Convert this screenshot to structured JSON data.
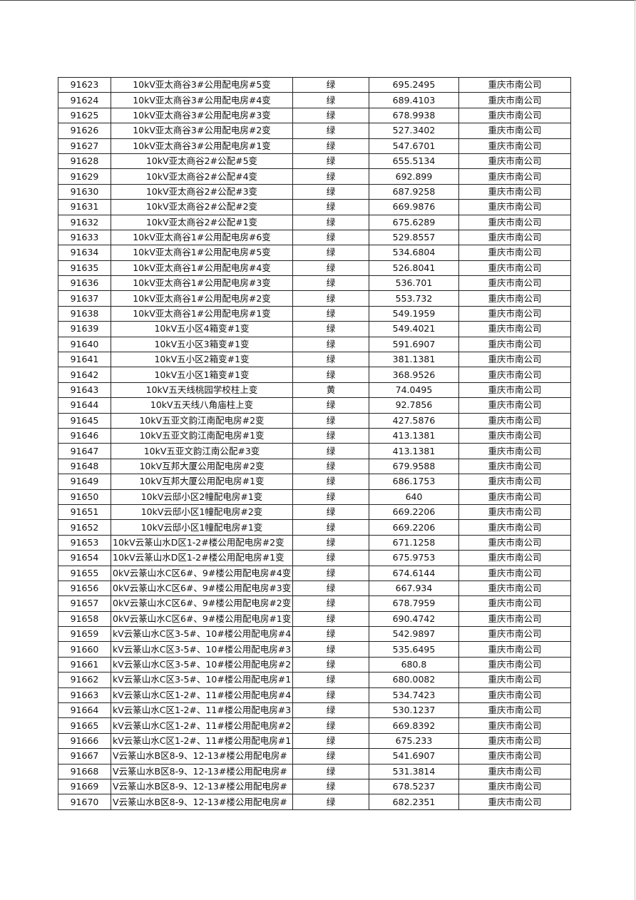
{
  "table": {
    "rows": [
      {
        "id": "91623",
        "name": "10kV亚太商谷3#公用配电房#5变",
        "status": "绿",
        "value": "695.2495",
        "company": "重庆市南公司"
      },
      {
        "id": "91624",
        "name": "10kV亚太商谷3#公用配电房#4变",
        "status": "绿",
        "value": "689.4103",
        "company": "重庆市南公司"
      },
      {
        "id": "91625",
        "name": "10kV亚太商谷3#公用配电房#3变",
        "status": "绿",
        "value": "678.9938",
        "company": "重庆市南公司"
      },
      {
        "id": "91626",
        "name": "10kV亚太商谷3#公用配电房#2变",
        "status": "绿",
        "value": "527.3402",
        "company": "重庆市南公司"
      },
      {
        "id": "91627",
        "name": "10kV亚太商谷3#公用配电房#1变",
        "status": "绿",
        "value": "547.6701",
        "company": "重庆市南公司"
      },
      {
        "id": "91628",
        "name": "10kV亚太商谷2#公配#5变",
        "status": "绿",
        "value": "655.5134",
        "company": "重庆市南公司"
      },
      {
        "id": "91629",
        "name": "10kV亚太商谷2#公配#4变",
        "status": "绿",
        "value": "692.899",
        "company": "重庆市南公司"
      },
      {
        "id": "91630",
        "name": "10kV亚太商谷2#公配#3变",
        "status": "绿",
        "value": "687.9258",
        "company": "重庆市南公司"
      },
      {
        "id": "91631",
        "name": "10kV亚太商谷2#公配#2变",
        "status": "绿",
        "value": "669.9876",
        "company": "重庆市南公司"
      },
      {
        "id": "91632",
        "name": "10kV亚太商谷2#公配#1变",
        "status": "绿",
        "value": "675.6289",
        "company": "重庆市南公司"
      },
      {
        "id": "91633",
        "name": "10kV亚太商谷1#公用配电房#6变",
        "status": "绿",
        "value": "529.8557",
        "company": "重庆市南公司"
      },
      {
        "id": "91634",
        "name": "10kV亚太商谷1#公用配电房#5变",
        "status": "绿",
        "value": "534.6804",
        "company": "重庆市南公司"
      },
      {
        "id": "91635",
        "name": "10kV亚太商谷1#公用配电房#4变",
        "status": "绿",
        "value": "526.8041",
        "company": "重庆市南公司"
      },
      {
        "id": "91636",
        "name": "10kV亚太商谷1#公用配电房#3变",
        "status": "绿",
        "value": "536.701",
        "company": "重庆市南公司"
      },
      {
        "id": "91637",
        "name": "10kV亚太商谷1#公用配电房#2变",
        "status": "绿",
        "value": "553.732",
        "company": "重庆市南公司"
      },
      {
        "id": "91638",
        "name": "10kV亚太商谷1#公用配电房#1变",
        "status": "绿",
        "value": "549.1959",
        "company": "重庆市南公司"
      },
      {
        "id": "91639",
        "name": "10kV五小区4箱变#1变",
        "status": "绿",
        "value": "549.4021",
        "company": "重庆市南公司"
      },
      {
        "id": "91640",
        "name": "10kV五小区3箱变#1变",
        "status": "绿",
        "value": "591.6907",
        "company": "重庆市南公司"
      },
      {
        "id": "91641",
        "name": "10kV五小区2箱变#1变",
        "status": "绿",
        "value": "381.1381",
        "company": "重庆市南公司"
      },
      {
        "id": "91642",
        "name": "10kV五小区1箱变#1变",
        "status": "绿",
        "value": "368.9526",
        "company": "重庆市南公司"
      },
      {
        "id": "91643",
        "name": "10kV五天线桃园学校柱上变",
        "status": "黄",
        "value": "74.0495",
        "company": "重庆市南公司"
      },
      {
        "id": "91644",
        "name": "10kV五天线八角庙柱上变",
        "status": "绿",
        "value": "92.7856",
        "company": "重庆市南公司"
      },
      {
        "id": "91645",
        "name": "10kV五亚文韵江南配电房#2变",
        "status": "绿",
        "value": "427.5876",
        "company": "重庆市南公司"
      },
      {
        "id": "91646",
        "name": "10kV五亚文韵江南配电房#1变",
        "status": "绿",
        "value": "413.1381",
        "company": "重庆市南公司"
      },
      {
        "id": "91647",
        "name": "10kV五亚文韵江南公配#3变",
        "status": "绿",
        "value": "413.1381",
        "company": "重庆市南公司"
      },
      {
        "id": "91648",
        "name": "10kV互邦大厦公用配电房#2变",
        "status": "绿",
        "value": "679.9588",
        "company": "重庆市南公司"
      },
      {
        "id": "91649",
        "name": "10kV互邦大厦公用配电房#1变",
        "status": "绿",
        "value": "686.1753",
        "company": "重庆市南公司"
      },
      {
        "id": "91650",
        "name": "10kV云邸小区2幢配电房#1变",
        "status": "绿",
        "value": "640",
        "company": "重庆市南公司"
      },
      {
        "id": "91651",
        "name": "10kV云邸小区1幢配电房#2变",
        "status": "绿",
        "value": "669.2206",
        "company": "重庆市南公司"
      },
      {
        "id": "91652",
        "name": "10kV云邸小区1幢配电房#1变",
        "status": "绿",
        "value": "669.2206",
        "company": "重庆市南公司"
      },
      {
        "id": "91653",
        "name": "10kV云篆山水D区1-2#楼公用配电房#2变",
        "status": "绿",
        "value": "671.1258",
        "company": "重庆市南公司"
      },
      {
        "id": "91654",
        "name": "10kV云篆山水D区1-2#楼公用配电房#1变",
        "status": "绿",
        "value": "675.9753",
        "company": "重庆市南公司"
      },
      {
        "id": "91655",
        "name": "0kV云篆山水C区6#、9#楼公用配电房#4变",
        "status": "绿",
        "value": "674.6144",
        "company": "重庆市南公司"
      },
      {
        "id": "91656",
        "name": "0kV云篆山水C区6#、9#楼公用配电房#3变",
        "status": "绿",
        "value": "667.934",
        "company": "重庆市南公司"
      },
      {
        "id": "91657",
        "name": "0kV云篆山水C区6#、9#楼公用配电房#2变",
        "status": "绿",
        "value": "678.7959",
        "company": "重庆市南公司"
      },
      {
        "id": "91658",
        "name": "0kV云篆山水C区6#、9#楼公用配电房#1变",
        "status": "绿",
        "value": "690.4742",
        "company": "重庆市南公司"
      },
      {
        "id": "91659",
        "name": "kV云篆山水C区3-5#、10#楼公用配电房#4",
        "status": "绿",
        "value": "542.9897",
        "company": "重庆市南公司"
      },
      {
        "id": "91660",
        "name": "kV云篆山水C区3-5#、10#楼公用配电房#3",
        "status": "绿",
        "value": "535.6495",
        "company": "重庆市南公司"
      },
      {
        "id": "91661",
        "name": "kV云篆山水C区3-5#、10#楼公用配电房#2",
        "status": "绿",
        "value": "680.8",
        "company": "重庆市南公司"
      },
      {
        "id": "91662",
        "name": "kV云篆山水C区3-5#、10#楼公用配电房#1",
        "status": "绿",
        "value": "680.0082",
        "company": "重庆市南公司"
      },
      {
        "id": "91663",
        "name": "kV云篆山水C区1-2#、11#楼公用配电房#4",
        "status": "绿",
        "value": "534.7423",
        "company": "重庆市南公司"
      },
      {
        "id": "91664",
        "name": "kV云篆山水C区1-2#、11#楼公用配电房#3",
        "status": "绿",
        "value": "530.1237",
        "company": "重庆市南公司"
      },
      {
        "id": "91665",
        "name": "kV云篆山水C区1-2#、11#楼公用配电房#2",
        "status": "绿",
        "value": "669.8392",
        "company": "重庆市南公司"
      },
      {
        "id": "91666",
        "name": "kV云篆山水C区1-2#、11#楼公用配电房#1",
        "status": "绿",
        "value": "675.233",
        "company": "重庆市南公司"
      },
      {
        "id": "91667",
        "name": "V云篆山水B区8-9、12-13#楼公用配电房#",
        "status": "绿",
        "value": "541.6907",
        "company": "重庆市南公司"
      },
      {
        "id": "91668",
        "name": "V云篆山水B区8-9、12-13#楼公用配电房#",
        "status": "绿",
        "value": "531.3814",
        "company": "重庆市南公司"
      },
      {
        "id": "91669",
        "name": "V云篆山水B区8-9、12-13#楼公用配电房#",
        "status": "绿",
        "value": "678.5237",
        "company": "重庆市南公司"
      },
      {
        "id": "91670",
        "name": "V云篆山水B区8-9、12-13#楼公用配电房#",
        "status": "绿",
        "value": "682.2351",
        "company": "重庆市南公司"
      }
    ]
  }
}
